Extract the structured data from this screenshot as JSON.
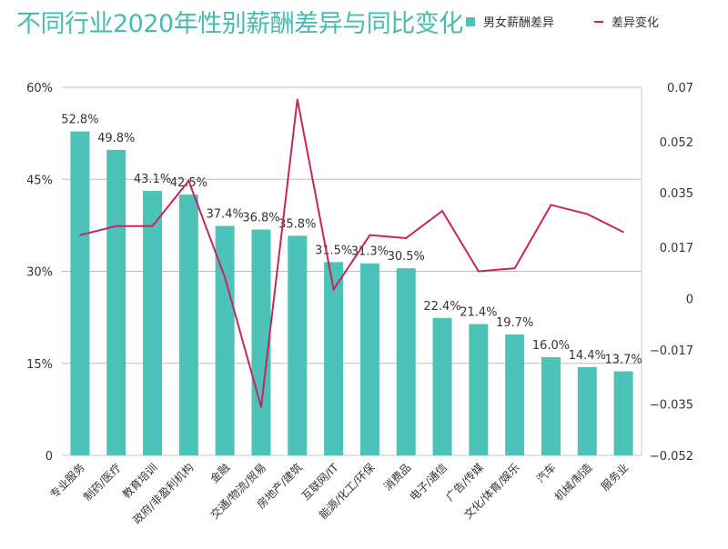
{
  "chart_data": {
    "type": "bar",
    "title": "不同行业2020年性别薪酬差异与同比变化",
    "xlabel": "",
    "ylabel": "",
    "categories": [
      "专业服务",
      "制药/医疗",
      "教育培训",
      "政府/非盈利机构",
      "金融",
      "交通/物流/贸易",
      "房地产/建筑",
      "互联网/IT",
      "能源/化工/环保",
      "消费品",
      "电子/通信",
      "广告/传媒",
      "文化/体育/娱乐",
      "汽车",
      "机械/制造",
      "服务业"
    ],
    "series": [
      {
        "name": "男女薪酬差异",
        "type": "bar",
        "axis": "left",
        "color": "#4cc2b8",
        "values": [
          52.8,
          49.8,
          43.1,
          42.5,
          37.4,
          36.8,
          35.8,
          31.5,
          31.3,
          30.5,
          22.4,
          21.4,
          19.7,
          16.0,
          14.4,
          13.7
        ],
        "labels": [
          "52.8%",
          "49.8%",
          "43.1%",
          "42.5%",
          "37.4%",
          "36.8%",
          "35.8%",
          "31.5%",
          "31.3%",
          "30.5%",
          "22.4%",
          "21.4%",
          "19.7%",
          "16.0%",
          "14.4%",
          "13.7%"
        ]
      },
      {
        "name": "差异变化",
        "type": "line",
        "axis": "right",
        "color": "#c8245e",
        "values": [
          0.021,
          0.024,
          0.024,
          0.039,
          0.007,
          -0.036,
          0.066,
          0.003,
          0.021,
          0.02,
          0.029,
          0.009,
          0.01,
          0.031,
          0.028,
          0.022
        ]
      }
    ],
    "y_left": {
      "ylim": [
        0,
        60
      ],
      "ticks": [
        0,
        15,
        30,
        45,
        60
      ],
      "tick_labels": [
        "0",
        "15%",
        "30%",
        "45%",
        "60%"
      ]
    },
    "y_right": {
      "ylim": [
        -0.052,
        0.07
      ],
      "ticks": [
        0.07,
        0.052,
        0.035,
        0.017,
        0,
        -0.017,
        -0.035,
        -0.052
      ],
      "tick_labels": [
        "0.07",
        "0.052",
        "0.035",
        "0.017",
        "0",
        "-0.017",
        "-0.035",
        "-0.052"
      ]
    },
    "grid": true,
    "legend": {
      "position": "top-right",
      "entries": [
        "男女薪酬差异",
        "差异变化"
      ]
    }
  }
}
